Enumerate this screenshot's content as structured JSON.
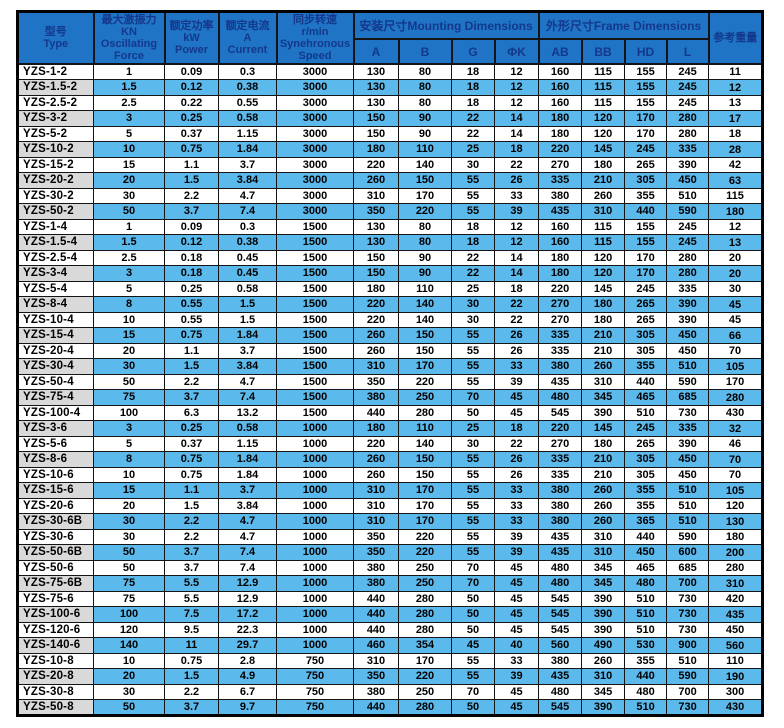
{
  "table": {
    "headers": {
      "type": "型号\nType",
      "force": "最大激振力KN\nOscillating\nForce",
      "power": "额定功率\nkW\nPower",
      "current": "额定电流\nA\nCurrent",
      "speed": "同步转速\nr/min\nSynehronous\nSpeed",
      "mounting": "安装尺寸Mounting Dimensions",
      "frame": "外形尺寸Frame Dimensions",
      "weight": "参考重量",
      "mounting_cols": [
        "A",
        "B",
        "G",
        "ΦK"
      ],
      "frame_cols": [
        "AB",
        "BB",
        "HD",
        "L"
      ]
    },
    "rows": [
      [
        "YZS-1-2",
        "1",
        "0.09",
        "0.3",
        "3000",
        "130",
        "80",
        "18",
        "12",
        "160",
        "115",
        "155",
        "245",
        "11"
      ],
      [
        "YZS-1.5-2",
        "1.5",
        "0.12",
        "0.38",
        "3000",
        "130",
        "80",
        "18",
        "12",
        "160",
        "115",
        "155",
        "245",
        "12"
      ],
      [
        "YZS-2.5-2",
        "2.5",
        "0.22",
        "0.55",
        "3000",
        "130",
        "80",
        "18",
        "12",
        "160",
        "115",
        "155",
        "245",
        "13"
      ],
      [
        "YZS-3-2",
        "3",
        "0.25",
        "0.58",
        "3000",
        "150",
        "90",
        "22",
        "14",
        "180",
        "120",
        "170",
        "280",
        "17"
      ],
      [
        "YZS-5-2",
        "5",
        "0.37",
        "1.15",
        "3000",
        "150",
        "90",
        "22",
        "14",
        "180",
        "120",
        "170",
        "280",
        "18"
      ],
      [
        "YZS-10-2",
        "10",
        "0.75",
        "1.84",
        "3000",
        "180",
        "110",
        "25",
        "18",
        "220",
        "145",
        "245",
        "335",
        "28"
      ],
      [
        "YZS-15-2",
        "15",
        "1.1",
        "3.7",
        "3000",
        "220",
        "140",
        "30",
        "22",
        "270",
        "180",
        "265",
        "390",
        "42"
      ],
      [
        "YZS-20-2",
        "20",
        "1.5",
        "3.84",
        "3000",
        "260",
        "150",
        "55",
        "26",
        "335",
        "210",
        "305",
        "450",
        "63"
      ],
      [
        "YZS-30-2",
        "30",
        "2.2",
        "4.7",
        "3000",
        "310",
        "170",
        "55",
        "33",
        "380",
        "260",
        "355",
        "510",
        "115"
      ],
      [
        "YZS-50-2",
        "50",
        "3.7",
        "7.4",
        "3000",
        "350",
        "220",
        "55",
        "39",
        "435",
        "310",
        "440",
        "590",
        "180"
      ],
      [
        "YZS-1-4",
        "1",
        "0.09",
        "0.3",
        "1500",
        "130",
        "80",
        "18",
        "12",
        "160",
        "115",
        "155",
        "245",
        "12"
      ],
      [
        "YZS-1.5-4",
        "1.5",
        "0.12",
        "0.38",
        "1500",
        "130",
        "80",
        "18",
        "12",
        "160",
        "115",
        "155",
        "245",
        "13"
      ],
      [
        "YZS-2.5-4",
        "2.5",
        "0.18",
        "0.45",
        "1500",
        "150",
        "90",
        "22",
        "14",
        "180",
        "120",
        "170",
        "280",
        "20"
      ],
      [
        "YZS-3-4",
        "3",
        "0.18",
        "0.45",
        "1500",
        "150",
        "90",
        "22",
        "14",
        "180",
        "120",
        "170",
        "280",
        "20"
      ],
      [
        "YZS-5-4",
        "5",
        "0.25",
        "0.58",
        "1500",
        "180",
        "110",
        "25",
        "18",
        "220",
        "145",
        "245",
        "335",
        "30"
      ],
      [
        "YZS-8-4",
        "8",
        "0.55",
        "1.5",
        "1500",
        "220",
        "140",
        "30",
        "22",
        "270",
        "180",
        "265",
        "390",
        "45"
      ],
      [
        "YZS-10-4",
        "10",
        "0.55",
        "1.5",
        "1500",
        "220",
        "140",
        "30",
        "22",
        "270",
        "180",
        "265",
        "390",
        "45"
      ],
      [
        "YZS-15-4",
        "15",
        "0.75",
        "1.84",
        "1500",
        "260",
        "150",
        "55",
        "26",
        "335",
        "210",
        "305",
        "450",
        "66"
      ],
      [
        "YZS-20-4",
        "20",
        "1.1",
        "3.7",
        "1500",
        "260",
        "150",
        "55",
        "26",
        "335",
        "210",
        "305",
        "450",
        "70"
      ],
      [
        "YZS-30-4",
        "30",
        "1.5",
        "3.84",
        "1500",
        "310",
        "170",
        "55",
        "33",
        "380",
        "260",
        "355",
        "510",
        "105"
      ],
      [
        "YZS-50-4",
        "50",
        "2.2",
        "4.7",
        "1500",
        "350",
        "220",
        "55",
        "39",
        "435",
        "310",
        "440",
        "590",
        "170"
      ],
      [
        "YZS-75-4",
        "75",
        "3.7",
        "7.4",
        "1500",
        "380",
        "250",
        "70",
        "45",
        "480",
        "345",
        "465",
        "685",
        "280"
      ],
      [
        "YZS-100-4",
        "100",
        "6.3",
        "13.2",
        "1500",
        "440",
        "280",
        "50",
        "45",
        "545",
        "390",
        "510",
        "730",
        "430"
      ],
      [
        "YZS-3-6",
        "3",
        "0.25",
        "0.58",
        "1000",
        "180",
        "110",
        "25",
        "18",
        "220",
        "145",
        "245",
        "335",
        "32"
      ],
      [
        "YZS-5-6",
        "5",
        "0.37",
        "1.15",
        "1000",
        "220",
        "140",
        "30",
        "22",
        "270",
        "180",
        "265",
        "390",
        "46"
      ],
      [
        "YZS-8-6",
        "8",
        "0.75",
        "1.84",
        "1000",
        "260",
        "150",
        "55",
        "26",
        "335",
        "210",
        "305",
        "450",
        "70"
      ],
      [
        "YZS-10-6",
        "10",
        "0.75",
        "1.84",
        "1000",
        "260",
        "150",
        "55",
        "26",
        "335",
        "210",
        "305",
        "450",
        "70"
      ],
      [
        "YZS-15-6",
        "15",
        "1.1",
        "3.7",
        "1000",
        "310",
        "170",
        "55",
        "33",
        "380",
        "260",
        "355",
        "510",
        "105"
      ],
      [
        "YZS-20-6",
        "20",
        "1.5",
        "3.84",
        "1000",
        "310",
        "170",
        "55",
        "33",
        "380",
        "260",
        "355",
        "510",
        "120"
      ],
      [
        "YZS-30-6B",
        "30",
        "2.2",
        "4.7",
        "1000",
        "310",
        "170",
        "55",
        "33",
        "380",
        "260",
        "365",
        "510",
        "130"
      ],
      [
        "YZS-30-6",
        "30",
        "2.2",
        "4.7",
        "1000",
        "350",
        "220",
        "55",
        "39",
        "435",
        "310",
        "440",
        "590",
        "180"
      ],
      [
        "YZS-50-6B",
        "50",
        "3.7",
        "7.4",
        "1000",
        "350",
        "220",
        "55",
        "39",
        "435",
        "310",
        "450",
        "600",
        "200"
      ],
      [
        "YZS-50-6",
        "50",
        "3.7",
        "7.4",
        "1000",
        "380",
        "250",
        "70",
        "45",
        "480",
        "345",
        "465",
        "685",
        "280"
      ],
      [
        "YZS-75-6B",
        "75",
        "5.5",
        "12.9",
        "1000",
        "380",
        "250",
        "70",
        "45",
        "480",
        "345",
        "480",
        "700",
        "310"
      ],
      [
        "YZS-75-6",
        "75",
        "5.5",
        "12.9",
        "1000",
        "440",
        "280",
        "50",
        "45",
        "545",
        "390",
        "510",
        "730",
        "420"
      ],
      [
        "YZS-100-6",
        "100",
        "7.5",
        "17.2",
        "1000",
        "440",
        "280",
        "50",
        "45",
        "545",
        "390",
        "510",
        "730",
        "435"
      ],
      [
        "YZS-120-6",
        "120",
        "9.5",
        "22.3",
        "1000",
        "440",
        "280",
        "50",
        "45",
        "545",
        "390",
        "510",
        "730",
        "450"
      ],
      [
        "YZS-140-6",
        "140",
        "11",
        "29.7",
        "1000",
        "460",
        "354",
        "45",
        "40",
        "560",
        "490",
        "530",
        "900",
        "560"
      ],
      [
        "YZS-10-8",
        "10",
        "0.75",
        "2.8",
        "750",
        "310",
        "170",
        "55",
        "33",
        "380",
        "260",
        "355",
        "510",
        "110"
      ],
      [
        "YZS-20-8",
        "20",
        "1.5",
        "4.9",
        "750",
        "350",
        "220",
        "55",
        "39",
        "435",
        "310",
        "440",
        "590",
        "190"
      ],
      [
        "YZS-30-8",
        "30",
        "2.2",
        "6.7",
        "750",
        "380",
        "250",
        "70",
        "45",
        "480",
        "345",
        "480",
        "700",
        "300"
      ],
      [
        "YZS-50-8",
        "50",
        "3.7",
        "9.7",
        "750",
        "440",
        "280",
        "50",
        "45",
        "545",
        "390",
        "510",
        "730",
        "430"
      ]
    ]
  },
  "colors": {
    "header_bg": "#1f74c5",
    "header_text": "#14388c",
    "row_stripe_blue": "#5cb9ec",
    "model_stripe_gray": "#d9d9d9",
    "border": "#000000",
    "data_text": "#000000"
  }
}
